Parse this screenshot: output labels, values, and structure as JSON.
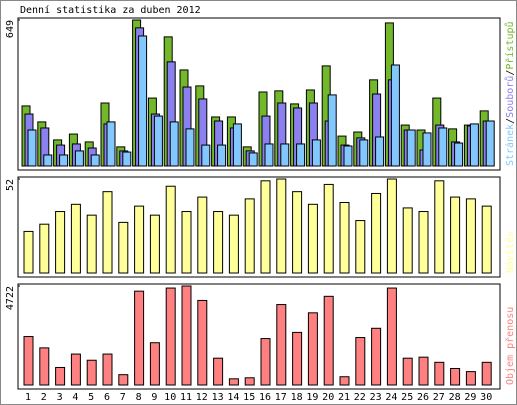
{
  "chart_data": [
    {
      "type": "bar",
      "title": "Denní statistika za duben 2012",
      "ylim": [
        0,
        649
      ],
      "yticks": [
        649
      ],
      "label_separator": "/",
      "series": [
        {
          "name": "Přístupů",
          "color": "#72b82a",
          "values": [
            267,
            196,
            116,
            142,
            107,
            280,
            85,
            649,
            302,
            574,
            427,
            356,
            218,
            218,
            85,
            329,
            334,
            276,
            338,
            445,
            133,
            151,
            383,
            636,
            182,
            160,
            302,
            165,
            182,
            245
          ]
        },
        {
          "name": "Souborů",
          "color": "#8a80f0",
          "values": [
            231,
            169,
            93,
            98,
            80,
            187,
            67,
            614,
            231,
            463,
            351,
            298,
            200,
            169,
            67,
            222,
            280,
            258,
            280,
            200,
            93,
            125,
            320,
            383,
            160,
            71,
            182,
            107,
            178,
            200
          ]
        },
        {
          "name": "Stránek",
          "color": "#82c8ff",
          "values": [
            160,
            49,
            49,
            67,
            49,
            196,
            62,
            578,
            222,
            196,
            165,
            93,
            93,
            187,
            58,
            98,
            98,
            98,
            116,
            316,
            89,
            116,
            129,
            449,
            160,
            147,
            169,
            102,
            187,
            200
          ]
        }
      ]
    },
    {
      "type": "bar",
      "ylim": [
        0,
        52
      ],
      "yticks": [
        52
      ],
      "series": [
        {
          "name": "Návštěv",
          "color": "#ffff99",
          "values": [
            23,
            27,
            34,
            38,
            32,
            45,
            28,
            37,
            32,
            48,
            34,
            42,
            34,
            32,
            41,
            51,
            52,
            45,
            38,
            49,
            39,
            29,
            44,
            52,
            36,
            34,
            51,
            42,
            41,
            37
          ]
        }
      ]
    },
    {
      "type": "bar",
      "ylim": [
        0,
        4722
      ],
      "yticks": [
        4722
      ],
      "categories": [
        "1",
        "2",
        "3",
        "4",
        "5",
        "6",
        "7",
        "8",
        "9",
        "10",
        "11",
        "12",
        "13",
        "14",
        "15",
        "16",
        "17",
        "18",
        "19",
        "20",
        "21",
        "22",
        "23",
        "24",
        "25",
        "26",
        "27",
        "28",
        "29",
        "30"
      ],
      "category_colors": [
        "#6aa82a",
        "#000",
        "#000",
        "#000",
        "#000",
        "#000",
        "#6aa82a",
        "#6aa82a",
        "#000",
        "#000",
        "#000",
        "#000",
        "#000",
        "#6aa82a",
        "#6aa82a",
        "#000",
        "#000",
        "#000",
        "#000",
        "#000",
        "#6aa82a",
        "#6aa82a",
        "#000",
        "#000",
        "#000",
        "#000",
        "#000",
        "#6aa82a",
        "#6aa82a",
        "#000"
      ],
      "series": [
        {
          "name": "Objem přenosu",
          "color": "#ff8080",
          "values": [
            2312,
            1771,
            836,
            1476,
            1181,
            1476,
            492,
            4476,
            2017,
            4624,
            4722,
            4033,
            1279,
            295,
            344,
            2214,
            3837,
            2509,
            3443,
            4230,
            394,
            2263,
            2705,
            4624,
            1279,
            1328,
            1082,
            787,
            639,
            1082
          ]
        }
      ]
    }
  ]
}
